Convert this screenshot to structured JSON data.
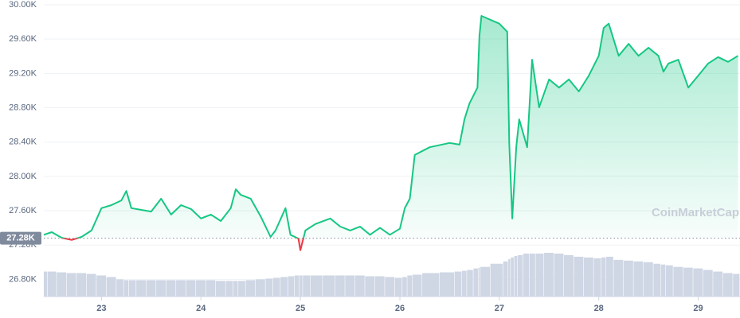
{
  "chart_data": {
    "type": "line",
    "watermark": "CoinMarketCap",
    "x": [
      22.42,
      22.5,
      22.6,
      22.7,
      22.8,
      22.9,
      23.0,
      23.1,
      23.2,
      23.25,
      23.3,
      23.4,
      23.5,
      23.6,
      23.7,
      23.8,
      23.9,
      24.0,
      24.1,
      24.2,
      24.3,
      24.35,
      24.4,
      24.5,
      24.6,
      24.7,
      24.75,
      24.85,
      24.9,
      24.98,
      25.0,
      25.05,
      25.15,
      25.3,
      25.4,
      25.5,
      25.6,
      25.7,
      25.8,
      25.9,
      26.0,
      26.05,
      26.1,
      26.15,
      26.3,
      26.5,
      26.6,
      26.65,
      26.7,
      26.78,
      26.8,
      26.82,
      27.0,
      27.08,
      27.1,
      27.13,
      27.17,
      27.2,
      27.28,
      27.33,
      27.4,
      27.5,
      27.6,
      27.7,
      27.8,
      27.9,
      28.0,
      28.05,
      28.1,
      28.2,
      28.3,
      28.4,
      28.5,
      28.6,
      28.65,
      28.7,
      28.8,
      28.9,
      29.0,
      29.1,
      29.2,
      29.3,
      29.4
    ],
    "series": [
      {
        "color": "#16c784",
        "below_color": "#ea3943",
        "values": [
          27320,
          27350,
          27285,
          27260,
          27295,
          27370,
          27630,
          27665,
          27720,
          27830,
          27630,
          27610,
          27590,
          27740,
          27555,
          27665,
          27620,
          27510,
          27555,
          27480,
          27630,
          27850,
          27785,
          27740,
          27535,
          27295,
          27370,
          27630,
          27320,
          27275,
          27140,
          27370,
          27445,
          27510,
          27415,
          27370,
          27415,
          27320,
          27400,
          27320,
          27390,
          27630,
          27740,
          28250,
          28340,
          28390,
          28370,
          28665,
          28850,
          29035,
          29640,
          29870,
          29780,
          29685,
          28390,
          27510,
          28340,
          28665,
          28340,
          29360,
          28805,
          29130,
          29035,
          29130,
          28990,
          29175,
          29405,
          29730,
          29780,
          29405,
          29545,
          29405,
          29500,
          29405,
          29220,
          29315,
          29360,
          29035,
          29175,
          29315,
          29390,
          29335,
          29405
        ]
      }
    ],
    "volume": {
      "color": "#cfd6e4",
      "values": [
        32,
        32,
        31,
        30,
        30,
        29,
        27,
        25,
        22,
        21,
        21,
        21,
        21,
        21,
        21,
        21,
        21,
        21,
        21,
        20,
        20,
        20,
        20,
        21,
        22,
        23,
        24,
        25,
        26,
        27,
        27,
        27,
        27,
        27,
        27,
        27,
        27,
        26,
        26,
        25,
        24,
        25,
        27,
        28,
        30,
        31,
        32,
        33,
        34,
        36,
        37,
        38,
        42,
        45,
        48,
        50,
        52,
        53,
        55,
        55,
        55,
        56,
        55,
        53,
        51,
        50,
        49,
        50,
        51,
        47,
        46,
        45,
        44,
        42,
        41,
        40,
        38,
        37,
        36,
        34,
        32,
        30,
        29
      ]
    },
    "reference": {
      "value": 27280,
      "label": "27.28K"
    },
    "xlim": [
      22.42,
      29.42
    ],
    "xticks": [
      23,
      24,
      25,
      26,
      27,
      28,
      29
    ],
    "ylim": [
      26600,
      30000
    ],
    "yticks": [
      {
        "value": 30000,
        "label": "30.00K"
      },
      {
        "value": 29600,
        "label": "29.60K"
      },
      {
        "value": 29200,
        "label": "29.20K"
      },
      {
        "value": 28800,
        "label": "28.80K"
      },
      {
        "value": 28400,
        "label": "28.40K"
      },
      {
        "value": 28000,
        "label": "28.00K"
      },
      {
        "value": 27600,
        "label": "27.60K"
      },
      {
        "value": 27200,
        "label": "27.20K"
      },
      {
        "value": 26800,
        "label": "26.80K"
      }
    ],
    "grid": true
  }
}
